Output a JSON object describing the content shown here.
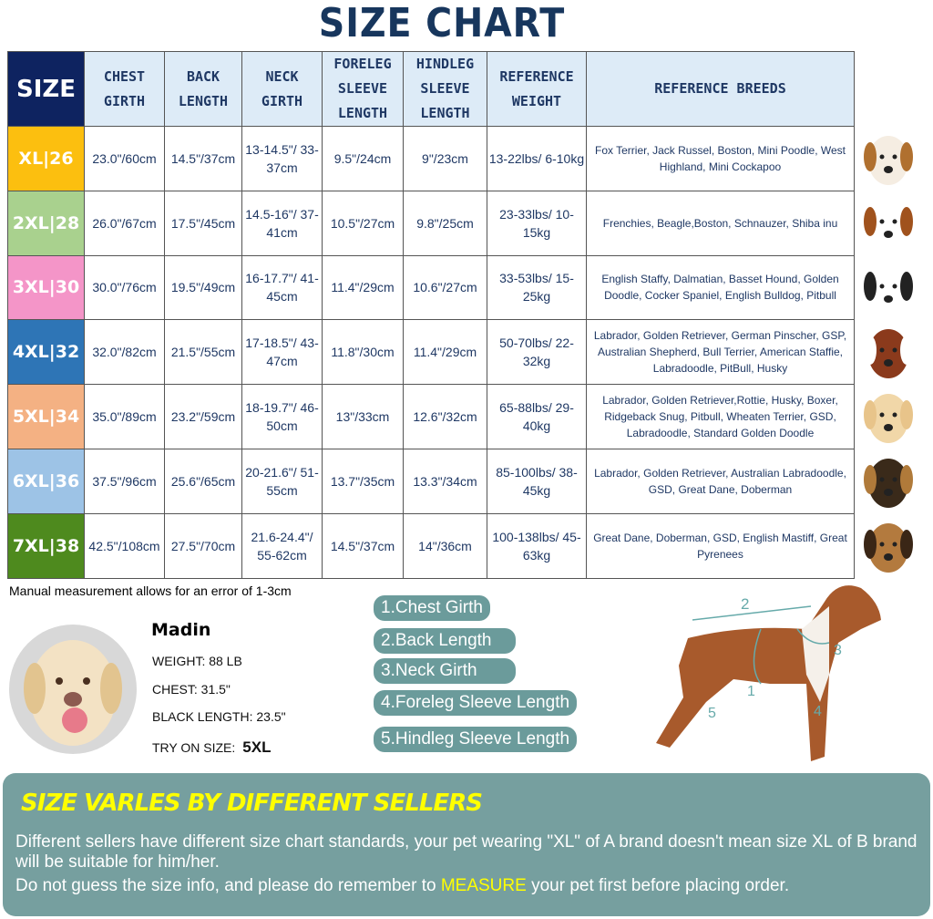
{
  "title": "SIZE CHART",
  "headers": [
    "SIZE",
    "CHEST GIRTH",
    "BACK LENGTH",
    "NECK GIRTH",
    "FORELEG SLEEVE LENGTH",
    "HINDLEG SLEEVE LENGTH",
    "REFERENCE WEIGHT",
    "REFERENCE BREEDS"
  ],
  "rows": [
    {
      "size": "XL|26",
      "color": "#fcbf0f",
      "chest": "23.0\"/60cm",
      "back": "14.5\"/37cm",
      "neck": "13-14.5\"/ 33-37cm",
      "foreleg": "9.5\"/24cm",
      "hindleg": "9\"/23cm",
      "weight": "13-22lbs/ 6-10kg",
      "breeds": "Fox Terrier, Jack Russel, Boston, Mini Poodle, West Highland, Mini Cockapoo"
    },
    {
      "size": "2XL|28",
      "color": "#a9d18e",
      "chest": "26.0\"/67cm",
      "back": "17.5\"/45cm",
      "neck": "14.5-16\"/ 37-41cm",
      "foreleg": "10.5\"/27cm",
      "hindleg": "9.8\"/25cm",
      "weight": "23-33lbs/ 10-15kg",
      "breeds": "Frenchies, Beagle,Boston, Schnauzer, Shiba inu"
    },
    {
      "size": "3XL|30",
      "color": "#f495c8",
      "chest": "30.0\"/76cm",
      "back": "19.5\"/49cm",
      "neck": "16-17.7\"/ 41-45cm",
      "foreleg": "11.4\"/29cm",
      "hindleg": "10.6\"/27cm",
      "weight": "33-53lbs/ 15-25kg",
      "breeds": "English Staffy, Dalmatian, Basset Hound, Golden Doodle, Cocker Spaniel, English Bulldog, Pitbull"
    },
    {
      "size": "4XL|32",
      "color": "#2e75b6",
      "chest": "32.0\"/82cm",
      "back": "21.5\"/55cm",
      "neck": "17-18.5\"/ 43-47cm",
      "foreleg": "11.8\"/30cm",
      "hindleg": "11.4\"/29cm",
      "weight": "50-70lbs/ 22-32kg",
      "breeds": "Labrador, Golden Retriever, German Pinscher, GSP, Australian Shepherd, Bull Terrier, American Staffie, Labradoodle, PitBull, Husky"
    },
    {
      "size": "5XL|34",
      "color": "#f4b183",
      "chest": "35.0\"/89cm",
      "back": "23.2\"/59cm",
      "neck": "18-19.7\"/ 46-50cm",
      "foreleg": "13\"/33cm",
      "hindleg": "12.6\"/32cm",
      "weight": "65-88lbs/ 29-40kg",
      "breeds": "Labrador, Golden Retriever,Rottie, Husky, Boxer, Ridgeback Snug, Pitbull, Wheaten Terrier, GSD, Labradoodle,  Standard Golden Doodle"
    },
    {
      "size": "6XL|36",
      "color": "#9dc3e6",
      "chest": "37.5\"/96cm",
      "back": "25.6\"/65cm",
      "neck": "20-21.6\"/ 51-55cm",
      "foreleg": "13.7\"/35cm",
      "hindleg": "13.3\"/34cm",
      "weight": "85-100lbs/ 38-45kg",
      "breeds": "Labrador, Golden Retriever, Australian Labradoodle, GSD, Great Dane, Doberman"
    },
    {
      "size": "7XL|38",
      "color": "#4e8a1e",
      "chest": "42.5\"/108cm",
      "back": "27.5\"/70cm",
      "neck": "21.6-24.4\"/ 55-62cm",
      "foreleg": "14.5\"/37cm",
      "hindleg": "14\"/36cm",
      "weight": "100-138lbs/ 45-63kg",
      "breeds": "Great Dane, Doberman, GSD, English Mastiff, Great Pyrenees"
    }
  ],
  "note": "Manual measurement allows for an error of 1-3cm",
  "example": {
    "name": "Madin",
    "weight": "WEIGHT: 88 LB",
    "chest": "CHEST: 31.5\"",
    "length": "BLACK LENGTH: 23.5\"",
    "try_label": "TRY ON SIZE:",
    "try_value": "5XL"
  },
  "measures": [
    "1.Chest Girth",
    "2.Back Length",
    "3.Neck Girth",
    "4.Foreleg Sleeve Length",
    "5.Hindleg Sleeve Length"
  ],
  "diagram_numbers": [
    "1",
    "2",
    "3",
    "4",
    "5"
  ],
  "panel": {
    "title": "SIZE VARLES BY DIFFERENT SELLERS",
    "line1": "Different sellers have different size chart standards, your pet wearing \"XL\" of A brand doesn't mean size XL of B brand will be suitable for him/her.",
    "line2a": "Do not guess the size info, and please do remember to ",
    "line2b": "MEASURE",
    "line2c": " your pet first before placing order."
  },
  "colors": {
    "header_bg": "#ddebf7",
    "size_header": "#0e2360",
    "pill": "#6b9b9b",
    "panel": "#769f9f",
    "highlight": "#ffff00"
  }
}
